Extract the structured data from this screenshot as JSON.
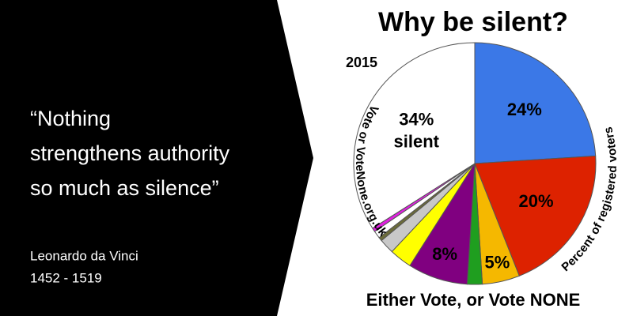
{
  "quote": {
    "lines": [
      "“Nothing",
      "strengthens authority",
      "so much as silence”"
    ],
    "author": "Leonardo da Vinci",
    "years": "1452 - 1519"
  },
  "chart_data": {
    "type": "pie",
    "title": "Why be silent?",
    "year_label": "2015",
    "footer": "Either Vote, or Vote NONE",
    "left_arc_text": "Vote or VoteNone.org.uk",
    "right_arc_text": "Percent of registered voters",
    "categories": [
      null,
      null,
      null,
      null,
      null,
      null,
      null,
      null,
      null,
      null,
      "silent"
    ],
    "values": [
      24,
      20,
      5,
      2,
      8,
      3,
      2,
      0.5,
      1,
      0.5,
      34
    ],
    "value_labels": [
      "24%",
      "20%",
      "5%",
      null,
      "8%",
      null,
      null,
      null,
      null,
      null,
      "34%"
    ],
    "colors": [
      "#3b78e7",
      "#dd2200",
      "#f5b800",
      "#1f9e1f",
      "#800080",
      "#ffff00",
      "#c8c8c8",
      "#6b6b3a",
      "#ffffff",
      "#e020e0",
      "#ffffff"
    ]
  }
}
